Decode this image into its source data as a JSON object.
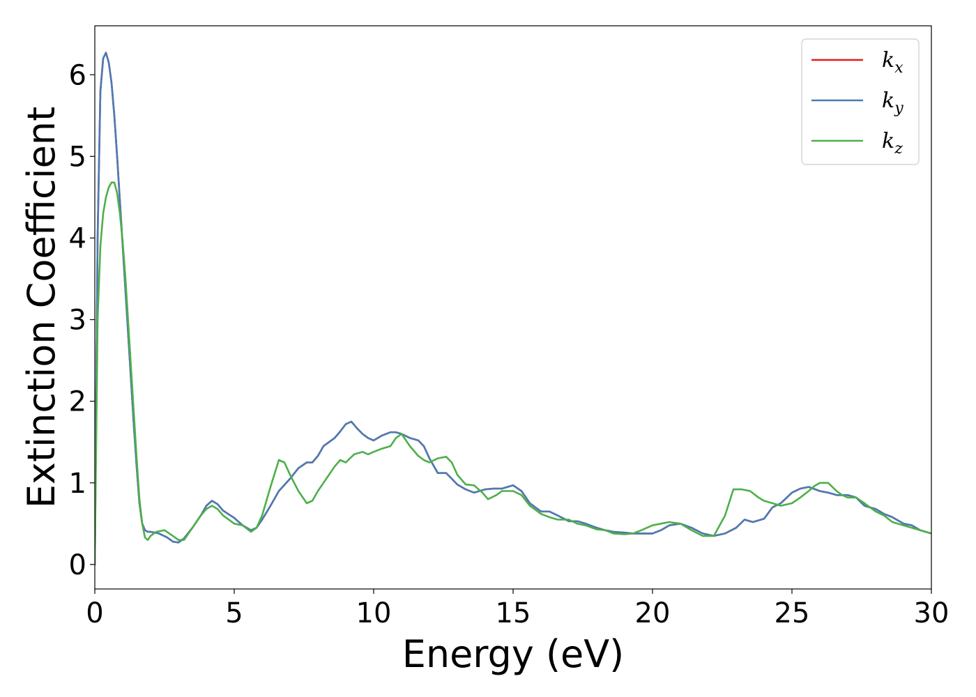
{
  "chart_data": {
    "type": "line",
    "title": "",
    "xlabel": "Energy (eV)",
    "ylabel": "Extinction Coefficient",
    "xlim": [
      0,
      30
    ],
    "ylim": [
      -0.3,
      6.6
    ],
    "xticks": [
      0,
      5,
      10,
      15,
      20,
      25,
      30
    ],
    "yticks": [
      0,
      1,
      2,
      3,
      4,
      5,
      6
    ],
    "grid": false,
    "legend_position": "top-right",
    "series": [
      {
        "name": "kx",
        "base": "k",
        "sub": "x",
        "color": "#e41a1c",
        "x": [
          0,
          0.05,
          0.1,
          0.2,
          0.3,
          0.4,
          0.5,
          0.6,
          0.7,
          0.8,
          0.9,
          1.0,
          1.1,
          1.2,
          1.3,
          1.4,
          1.5,
          1.6,
          1.7,
          1.8,
          1.9,
          2.0,
          2.3,
          2.6,
          2.8,
          3.0,
          3.2,
          3.5,
          3.8,
          4.0,
          4.2,
          4.4,
          4.6,
          5.0,
          5.3,
          5.6,
          5.8,
          6.0,
          6.3,
          6.6,
          7.0,
          7.3,
          7.6,
          7.8,
          8.0,
          8.2,
          8.4,
          8.6,
          8.8,
          9.0,
          9.2,
          9.4,
          9.6,
          9.8,
          10.0,
          10.3,
          10.6,
          10.8,
          11.0,
          11.3,
          11.6,
          11.8,
          12.0,
          12.3,
          12.6,
          12.8,
          13.0,
          13.3,
          13.6,
          14.0,
          14.3,
          14.6,
          15.0,
          15.3,
          15.6,
          16.0,
          16.3,
          16.6,
          17.0,
          17.3,
          17.6,
          18.0,
          18.3,
          18.6,
          19.0,
          19.3,
          19.6,
          20.0,
          20.3,
          20.6,
          21.0,
          21.4,
          21.8,
          22.2,
          22.6,
          23.0,
          23.3,
          23.6,
          24.0,
          24.3,
          24.6,
          25.0,
          25.3,
          25.6,
          26.0,
          26.3,
          26.6,
          27.0,
          27.3,
          27.6,
          28.0,
          28.3,
          28.6,
          29.0,
          29.3,
          29.6,
          30.0
        ],
        "y": [
          0,
          2.0,
          4.0,
          5.8,
          6.2,
          6.27,
          6.15,
          5.9,
          5.5,
          5.0,
          4.45,
          3.9,
          3.35,
          2.8,
          2.25,
          1.7,
          1.2,
          0.75,
          0.5,
          0.42,
          0.4,
          0.4,
          0.38,
          0.33,
          0.28,
          0.27,
          0.32,
          0.45,
          0.6,
          0.72,
          0.78,
          0.74,
          0.66,
          0.57,
          0.48,
          0.42,
          0.45,
          0.55,
          0.72,
          0.9,
          1.05,
          1.18,
          1.25,
          1.25,
          1.33,
          1.45,
          1.5,
          1.55,
          1.63,
          1.72,
          1.75,
          1.67,
          1.6,
          1.55,
          1.52,
          1.58,
          1.62,
          1.62,
          1.6,
          1.55,
          1.52,
          1.45,
          1.3,
          1.12,
          1.12,
          1.05,
          0.98,
          0.92,
          0.88,
          0.92,
          0.93,
          0.93,
          0.97,
          0.9,
          0.75,
          0.65,
          0.65,
          0.6,
          0.53,
          0.53,
          0.5,
          0.45,
          0.42,
          0.4,
          0.39,
          0.38,
          0.38,
          0.38,
          0.42,
          0.48,
          0.5,
          0.45,
          0.38,
          0.35,
          0.38,
          0.45,
          0.55,
          0.52,
          0.56,
          0.7,
          0.75,
          0.88,
          0.93,
          0.95,
          0.9,
          0.88,
          0.85,
          0.85,
          0.82,
          0.72,
          0.68,
          0.62,
          0.58,
          0.5,
          0.48,
          0.42,
          0.38
        ]
      },
      {
        "name": "ky",
        "base": "k",
        "sub": "y",
        "color": "#4a7cb4",
        "x": [
          0,
          0.05,
          0.1,
          0.2,
          0.3,
          0.4,
          0.5,
          0.6,
          0.7,
          0.8,
          0.9,
          1.0,
          1.1,
          1.2,
          1.3,
          1.4,
          1.5,
          1.6,
          1.7,
          1.8,
          1.9,
          2.0,
          2.3,
          2.6,
          2.8,
          3.0,
          3.2,
          3.5,
          3.8,
          4.0,
          4.2,
          4.4,
          4.6,
          5.0,
          5.3,
          5.6,
          5.8,
          6.0,
          6.3,
          6.6,
          7.0,
          7.3,
          7.6,
          7.8,
          8.0,
          8.2,
          8.4,
          8.6,
          8.8,
          9.0,
          9.2,
          9.4,
          9.6,
          9.8,
          10.0,
          10.3,
          10.6,
          10.8,
          11.0,
          11.3,
          11.6,
          11.8,
          12.0,
          12.3,
          12.6,
          12.8,
          13.0,
          13.3,
          13.6,
          14.0,
          14.3,
          14.6,
          15.0,
          15.3,
          15.6,
          16.0,
          16.3,
          16.6,
          17.0,
          17.3,
          17.6,
          18.0,
          18.3,
          18.6,
          19.0,
          19.3,
          19.6,
          20.0,
          20.3,
          20.6,
          21.0,
          21.4,
          21.8,
          22.2,
          22.6,
          23.0,
          23.3,
          23.6,
          24.0,
          24.3,
          24.6,
          25.0,
          25.3,
          25.6,
          26.0,
          26.3,
          26.6,
          27.0,
          27.3,
          27.6,
          28.0,
          28.3,
          28.6,
          29.0,
          29.3,
          29.6,
          30.0
        ],
        "y": [
          0,
          2.0,
          4.0,
          5.8,
          6.2,
          6.27,
          6.15,
          5.9,
          5.5,
          5.0,
          4.45,
          3.9,
          3.35,
          2.8,
          2.25,
          1.7,
          1.2,
          0.75,
          0.5,
          0.42,
          0.4,
          0.4,
          0.38,
          0.33,
          0.28,
          0.27,
          0.32,
          0.45,
          0.6,
          0.72,
          0.78,
          0.74,
          0.66,
          0.57,
          0.48,
          0.42,
          0.45,
          0.55,
          0.72,
          0.9,
          1.05,
          1.18,
          1.25,
          1.25,
          1.33,
          1.45,
          1.5,
          1.55,
          1.63,
          1.72,
          1.75,
          1.67,
          1.6,
          1.55,
          1.52,
          1.58,
          1.62,
          1.62,
          1.6,
          1.55,
          1.52,
          1.45,
          1.3,
          1.12,
          1.12,
          1.05,
          0.98,
          0.92,
          0.88,
          0.92,
          0.93,
          0.93,
          0.97,
          0.9,
          0.75,
          0.65,
          0.65,
          0.6,
          0.53,
          0.53,
          0.5,
          0.45,
          0.42,
          0.4,
          0.39,
          0.38,
          0.38,
          0.38,
          0.42,
          0.48,
          0.5,
          0.45,
          0.38,
          0.35,
          0.38,
          0.45,
          0.55,
          0.52,
          0.56,
          0.7,
          0.75,
          0.88,
          0.93,
          0.95,
          0.9,
          0.88,
          0.85,
          0.85,
          0.82,
          0.72,
          0.68,
          0.62,
          0.58,
          0.5,
          0.48,
          0.42,
          0.38
        ]
      },
      {
        "name": "kz",
        "base": "k",
        "sub": "z",
        "color": "#4daf4a",
        "x": [
          0,
          0.05,
          0.1,
          0.2,
          0.3,
          0.4,
          0.5,
          0.6,
          0.7,
          0.8,
          0.9,
          1.0,
          1.1,
          1.2,
          1.3,
          1.4,
          1.5,
          1.6,
          1.7,
          1.8,
          1.9,
          2.0,
          2.2,
          2.5,
          2.8,
          3.0,
          3.2,
          3.5,
          3.8,
          4.0,
          4.2,
          4.4,
          4.6,
          5.0,
          5.3,
          5.6,
          5.8,
          6.0,
          6.3,
          6.6,
          6.8,
          7.0,
          7.3,
          7.6,
          7.8,
          8.0,
          8.3,
          8.6,
          8.8,
          9.0,
          9.3,
          9.6,
          9.8,
          10.0,
          10.3,
          10.6,
          10.8,
          11.0,
          11.3,
          11.6,
          11.8,
          12.0,
          12.3,
          12.6,
          12.8,
          13.0,
          13.3,
          13.6,
          13.9,
          14.1,
          14.4,
          14.6,
          15.0,
          15.3,
          15.6,
          16.0,
          16.3,
          16.6,
          17.0,
          17.3,
          17.6,
          18.0,
          18.3,
          18.6,
          19.0,
          19.3,
          19.6,
          19.8,
          20.0,
          20.3,
          20.6,
          21.0,
          21.4,
          21.8,
          22.2,
          22.6,
          22.9,
          23.2,
          23.5,
          23.8,
          24.0,
          24.3,
          24.6,
          25.0,
          25.3,
          25.6,
          25.8,
          26.0,
          26.3,
          26.6,
          26.8,
          27.0,
          27.3,
          27.6,
          28.0,
          28.3,
          28.6,
          29.0,
          29.3,
          29.6,
          30.0
        ],
        "y": [
          0,
          1.5,
          3.0,
          3.9,
          4.3,
          4.5,
          4.62,
          4.68,
          4.68,
          4.55,
          4.3,
          3.95,
          3.5,
          2.95,
          2.4,
          1.85,
          1.3,
          0.8,
          0.5,
          0.33,
          0.3,
          0.35,
          0.4,
          0.42,
          0.35,
          0.3,
          0.3,
          0.45,
          0.6,
          0.68,
          0.72,
          0.68,
          0.6,
          0.5,
          0.48,
          0.4,
          0.45,
          0.6,
          0.95,
          1.28,
          1.25,
          1.1,
          0.9,
          0.75,
          0.78,
          0.9,
          1.05,
          1.2,
          1.28,
          1.25,
          1.35,
          1.38,
          1.35,
          1.38,
          1.42,
          1.45,
          1.55,
          1.6,
          1.45,
          1.33,
          1.28,
          1.25,
          1.3,
          1.32,
          1.25,
          1.1,
          0.98,
          0.97,
          0.88,
          0.8,
          0.85,
          0.9,
          0.9,
          0.85,
          0.72,
          0.62,
          0.58,
          0.55,
          0.55,
          0.5,
          0.48,
          0.43,
          0.42,
          0.38,
          0.37,
          0.38,
          0.42,
          0.45,
          0.48,
          0.5,
          0.52,
          0.5,
          0.42,
          0.35,
          0.35,
          0.6,
          0.92,
          0.92,
          0.9,
          0.82,
          0.78,
          0.75,
          0.72,
          0.75,
          0.82,
          0.9,
          0.96,
          1.0,
          1.0,
          0.9,
          0.85,
          0.82,
          0.82,
          0.75,
          0.65,
          0.6,
          0.52,
          0.48,
          0.45,
          0.42,
          0.38
        ]
      }
    ]
  }
}
